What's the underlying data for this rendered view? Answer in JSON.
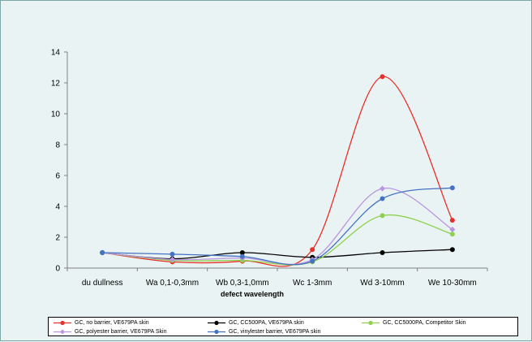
{
  "chart_data": {
    "type": "line",
    "title": "",
    "xlabel": "defect wavelength",
    "ylabel": "",
    "ylim": [
      0,
      14
    ],
    "yticks": [
      0,
      2,
      4,
      6,
      8,
      10,
      12,
      14
    ],
    "grid": false,
    "legend_position": "bottom",
    "categories": [
      "du dullness",
      "Wa 0,1-0,3mm",
      "Wb 0,3-1,0mm",
      "Wc 1-3mm",
      "Wd 3-10mm",
      "We 10-30mm"
    ],
    "series": [
      {
        "name": "GC, no barrier, VE679PA skin",
        "color": "#e8302a",
        "marker": "circle",
        "values": [
          1.0,
          0.4,
          0.45,
          1.2,
          12.4,
          3.1
        ]
      },
      {
        "name": "GC, CC500PA, VE679PA skin",
        "color": "#000000",
        "marker": "circle",
        "values": [
          1.0,
          0.6,
          1.0,
          0.7,
          1.0,
          1.2
        ]
      },
      {
        "name": "GC, CC5000PA, Competitor Skin",
        "color": "#8fd14f",
        "marker": "circle",
        "values": [
          1.0,
          0.5,
          0.5,
          0.4,
          3.4,
          2.2
        ]
      },
      {
        "name": "GC, polyester barrier, VE679PA Skin",
        "color": "#b896e0",
        "marker": "diamond",
        "values": [
          1.0,
          0.55,
          0.65,
          0.55,
          5.15,
          2.5
        ]
      },
      {
        "name": "GC, vinylester barrier, VE679PA skin",
        "color": "#4472c4",
        "marker": "circle",
        "values": [
          1.0,
          0.9,
          0.75,
          0.45,
          4.5,
          5.2
        ]
      }
    ]
  }
}
